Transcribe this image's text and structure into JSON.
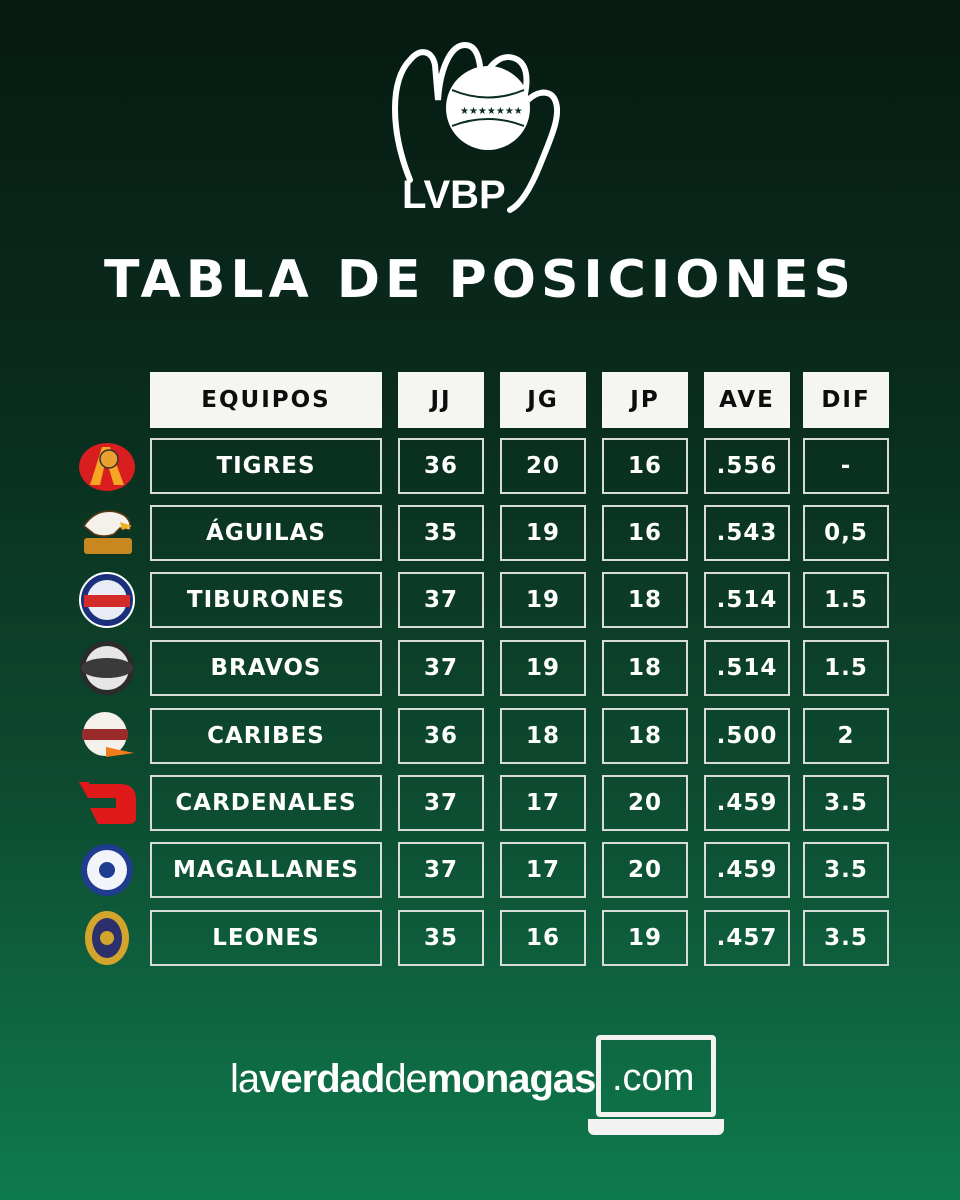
{
  "logo": {
    "text": "LVBP"
  },
  "title": "TABLA DE POSICIONES",
  "headers": {
    "team": "EQUIPOS",
    "jj": "JJ",
    "jg": "JG",
    "jp": "JP",
    "ave": "AVE",
    "dif": "DIF"
  },
  "rows": [
    {
      "team": "TIGRES",
      "jj": "36",
      "jg": "20",
      "jp": "16",
      "ave": ".556",
      "dif": "-",
      "emblem": "tigres-logo-icon"
    },
    {
      "team": "ÁGUILAS",
      "jj": "35",
      "jg": "19",
      "jp": "16",
      "ave": ".543",
      "dif": "0,5",
      "emblem": "aguilas-logo-icon"
    },
    {
      "team": "TIBURONES",
      "jj": "37",
      "jg": "19",
      "jp": "18",
      "ave": ".514",
      "dif": "1.5",
      "emblem": "tiburones-logo-icon"
    },
    {
      "team": "BRAVOS",
      "jj": "37",
      "jg": "19",
      "jp": "18",
      "ave": ".514",
      "dif": "1.5",
      "emblem": "bravos-logo-icon"
    },
    {
      "team": "CARIBES",
      "jj": "36",
      "jg": "18",
      "jp": "18",
      "ave": ".500",
      "dif": "2",
      "emblem": "caribes-logo-icon"
    },
    {
      "team": "CARDENALES",
      "jj": "37",
      "jg": "17",
      "jp": "20",
      "ave": ".459",
      "dif": "3.5",
      "emblem": "cardenales-logo-icon"
    },
    {
      "team": "MAGALLANES",
      "jj": "37",
      "jg": "17",
      "jp": "20",
      "ave": ".459",
      "dif": "3.5",
      "emblem": "magallanes-logo-icon"
    },
    {
      "team": "LEONES",
      "jj": "35",
      "jg": "16",
      "jp": "19",
      "ave": ".457",
      "dif": "3.5",
      "emblem": "leones-logo-icon"
    }
  ],
  "footer": {
    "part1": "la",
    "part2": "verdad",
    "part3": "de",
    "part4": "monagas",
    "part5": ".com"
  },
  "colors": {
    "background_top": "#061a11",
    "background_bottom": "#0f7a4e",
    "header_fill": "#f5f5f2",
    "cell_border": "#d8dcd9"
  }
}
